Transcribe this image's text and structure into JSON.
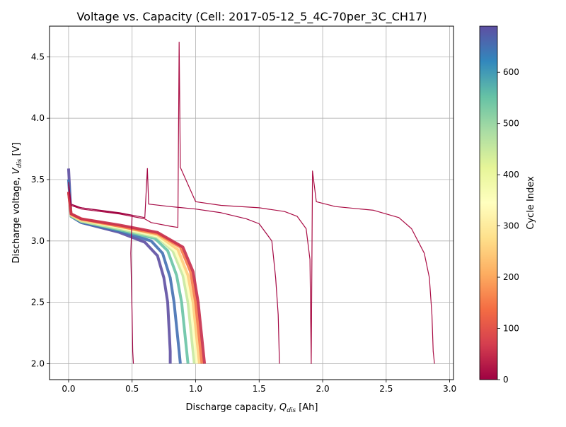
{
  "chart_data": {
    "type": "line",
    "title": "Voltage vs. Capacity (Cell: 2017-05-12_5_4C-70per_3C_CH17)",
    "xlabel_main": "Discharge capacity, ",
    "xlabel_sym": "Q",
    "xlabel_sub": "dis",
    "xlabel_unit": " [Ah]",
    "ylabel_main": "Discharge voltage, ",
    "ylabel_sym": "V",
    "ylabel_sub": "dis",
    "ylabel_unit": " [V]",
    "xlim": [
      -0.15,
      3.03
    ],
    "ylim": [
      1.87,
      4.75
    ],
    "xticks": [
      0.0,
      0.5,
      1.0,
      1.5,
      2.0,
      2.5,
      3.0
    ],
    "xtick_labels": [
      "0.0",
      "0.5",
      "1.0",
      "1.5",
      "2.0",
      "2.5",
      "3.0"
    ],
    "yticks": [
      2.0,
      2.5,
      3.0,
      3.5,
      4.0,
      4.5
    ],
    "ytick_labels": [
      "2.0",
      "2.5",
      "3.0",
      "3.5",
      "4.0",
      "4.5"
    ],
    "grid": true,
    "colormap": "Spectral",
    "colorbar": {
      "label": "Cycle Index",
      "range": [
        0,
        690
      ],
      "ticks": [
        0,
        100,
        200,
        300,
        400,
        500,
        600
      ],
      "tick_labels": [
        "0",
        "100",
        "200",
        "300",
        "400",
        "500",
        "600"
      ]
    },
    "series": [
      {
        "cycle": 0,
        "x": [
          0.0,
          0.02,
          0.1,
          0.3,
          0.5,
          0.49,
          0.5,
          0.505,
          0.51
        ],
        "y": [
          3.48,
          3.3,
          3.27,
          3.24,
          3.21,
          2.9,
          2.4,
          2.1,
          2.0
        ]
      },
      {
        "cycle": 8,
        "x": [
          0.0,
          0.02,
          0.1,
          0.4,
          0.6,
          0.62,
          0.63,
          0.8,
          1.0,
          1.2,
          1.4,
          1.5,
          1.6,
          1.63,
          1.65,
          1.66
        ],
        "y": [
          3.46,
          3.29,
          3.27,
          3.23,
          3.19,
          3.59,
          3.3,
          3.28,
          3.26,
          3.23,
          3.18,
          3.14,
          3.0,
          2.7,
          2.4,
          2.0
        ]
      },
      {
        "cycle": 15,
        "x": [
          0.0,
          0.02,
          0.1,
          0.4,
          0.6,
          0.65,
          0.8,
          0.86,
          0.87,
          0.88,
          1.0,
          1.2,
          1.5,
          1.7,
          1.8,
          1.87,
          1.9,
          1.91,
          1.92,
          1.95,
          2.1,
          2.4,
          2.6,
          2.7,
          2.8,
          2.84,
          2.86,
          2.87,
          2.88
        ],
        "y": [
          3.44,
          3.29,
          3.26,
          3.22,
          3.18,
          3.15,
          3.12,
          3.11,
          4.62,
          3.6,
          3.32,
          3.29,
          3.27,
          3.24,
          3.2,
          3.1,
          2.85,
          2.0,
          3.57,
          3.32,
          3.28,
          3.25,
          3.19,
          3.1,
          2.9,
          2.7,
          2.4,
          2.1,
          2.0
        ]
      },
      {
        "cycle": 50,
        "x": [
          0.0,
          0.02,
          0.1,
          0.4,
          0.7,
          0.9,
          0.98,
          1.02,
          1.04,
          1.06,
          1.07
        ],
        "y": [
          3.4,
          3.22,
          3.18,
          3.13,
          3.07,
          2.95,
          2.75,
          2.5,
          2.3,
          2.1,
          2.0
        ]
      },
      {
        "cycle": 150,
        "x": [
          0.0,
          0.02,
          0.1,
          0.4,
          0.7,
          0.88,
          0.96,
          1.0,
          1.02,
          1.04,
          1.05
        ],
        "y": [
          3.4,
          3.22,
          3.18,
          3.12,
          3.06,
          2.95,
          2.75,
          2.5,
          2.3,
          2.1,
          2.0
        ]
      },
      {
        "cycle": 250,
        "x": [
          0.0,
          0.02,
          0.1,
          0.4,
          0.7,
          0.86,
          0.94,
          0.98,
          1.0,
          1.02,
          1.03
        ],
        "y": [
          3.4,
          3.21,
          3.17,
          3.12,
          3.05,
          2.93,
          2.72,
          2.5,
          2.3,
          2.1,
          2.0
        ]
      },
      {
        "cycle": 350,
        "x": [
          0.0,
          0.02,
          0.1,
          0.4,
          0.7,
          0.84,
          0.92,
          0.96,
          0.98,
          1.0,
          1.01
        ],
        "y": [
          3.4,
          3.21,
          3.17,
          3.11,
          3.04,
          2.92,
          2.72,
          2.5,
          2.3,
          2.1,
          2.0
        ]
      },
      {
        "cycle": 450,
        "x": [
          0.0,
          0.02,
          0.1,
          0.4,
          0.7,
          0.82,
          0.9,
          0.94,
          0.96,
          0.98,
          0.99
        ],
        "y": [
          3.4,
          3.21,
          3.16,
          3.1,
          3.03,
          2.92,
          2.72,
          2.5,
          2.3,
          2.1,
          2.0
        ]
      },
      {
        "cycle": 550,
        "x": [
          0.0,
          0.02,
          0.1,
          0.4,
          0.68,
          0.78,
          0.85,
          0.89,
          0.91,
          0.93,
          0.94
        ],
        "y": [
          3.4,
          3.2,
          3.16,
          3.09,
          3.02,
          2.92,
          2.72,
          2.5,
          2.3,
          2.1,
          2.0
        ]
      },
      {
        "cycle": 650,
        "x": [
          0.0,
          0.02,
          0.1,
          0.4,
          0.65,
          0.74,
          0.8,
          0.83,
          0.85,
          0.87,
          0.88
        ],
        "y": [
          3.5,
          3.2,
          3.15,
          3.08,
          3.0,
          2.9,
          2.7,
          2.5,
          2.3,
          2.1,
          2.0
        ]
      },
      {
        "cycle": 690,
        "x": [
          0.0,
          0.02,
          0.1,
          0.4,
          0.6,
          0.7,
          0.75,
          0.78,
          0.79,
          0.8,
          0.8
        ],
        "y": [
          3.59,
          3.2,
          3.15,
          3.07,
          2.99,
          2.88,
          2.7,
          2.5,
          2.3,
          2.1,
          2.0
        ]
      }
    ]
  }
}
